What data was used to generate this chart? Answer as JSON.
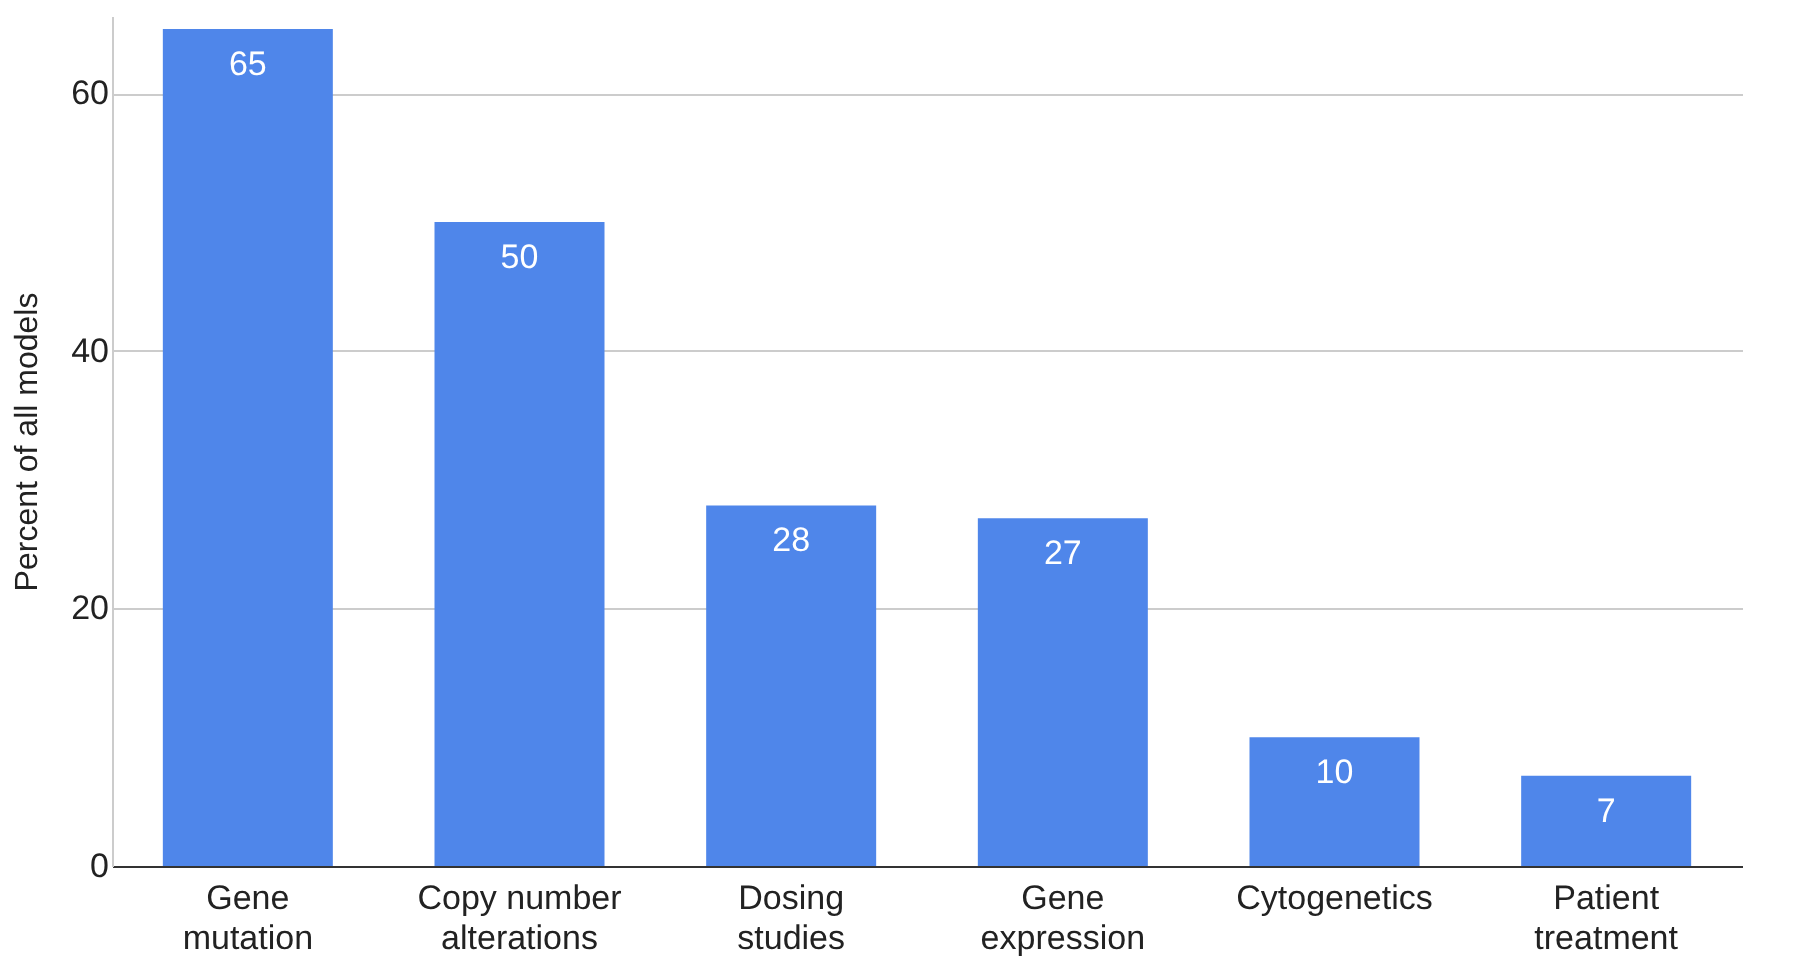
{
  "chart_data": {
    "type": "bar",
    "ylabel": "Percent of all models",
    "categories": [
      "Gene mutation",
      "Copy number alterations",
      "Dosing studies",
      "Gene expression",
      "Cytogenetics",
      "Patient treatment"
    ],
    "values": [
      65,
      50,
      28,
      27,
      10,
      7
    ],
    "color": "#4f86ea",
    "ylim": [
      0,
      66
    ],
    "yticks": [
      0,
      20,
      40,
      60
    ],
    "grid": "y",
    "data_labels": true
  }
}
